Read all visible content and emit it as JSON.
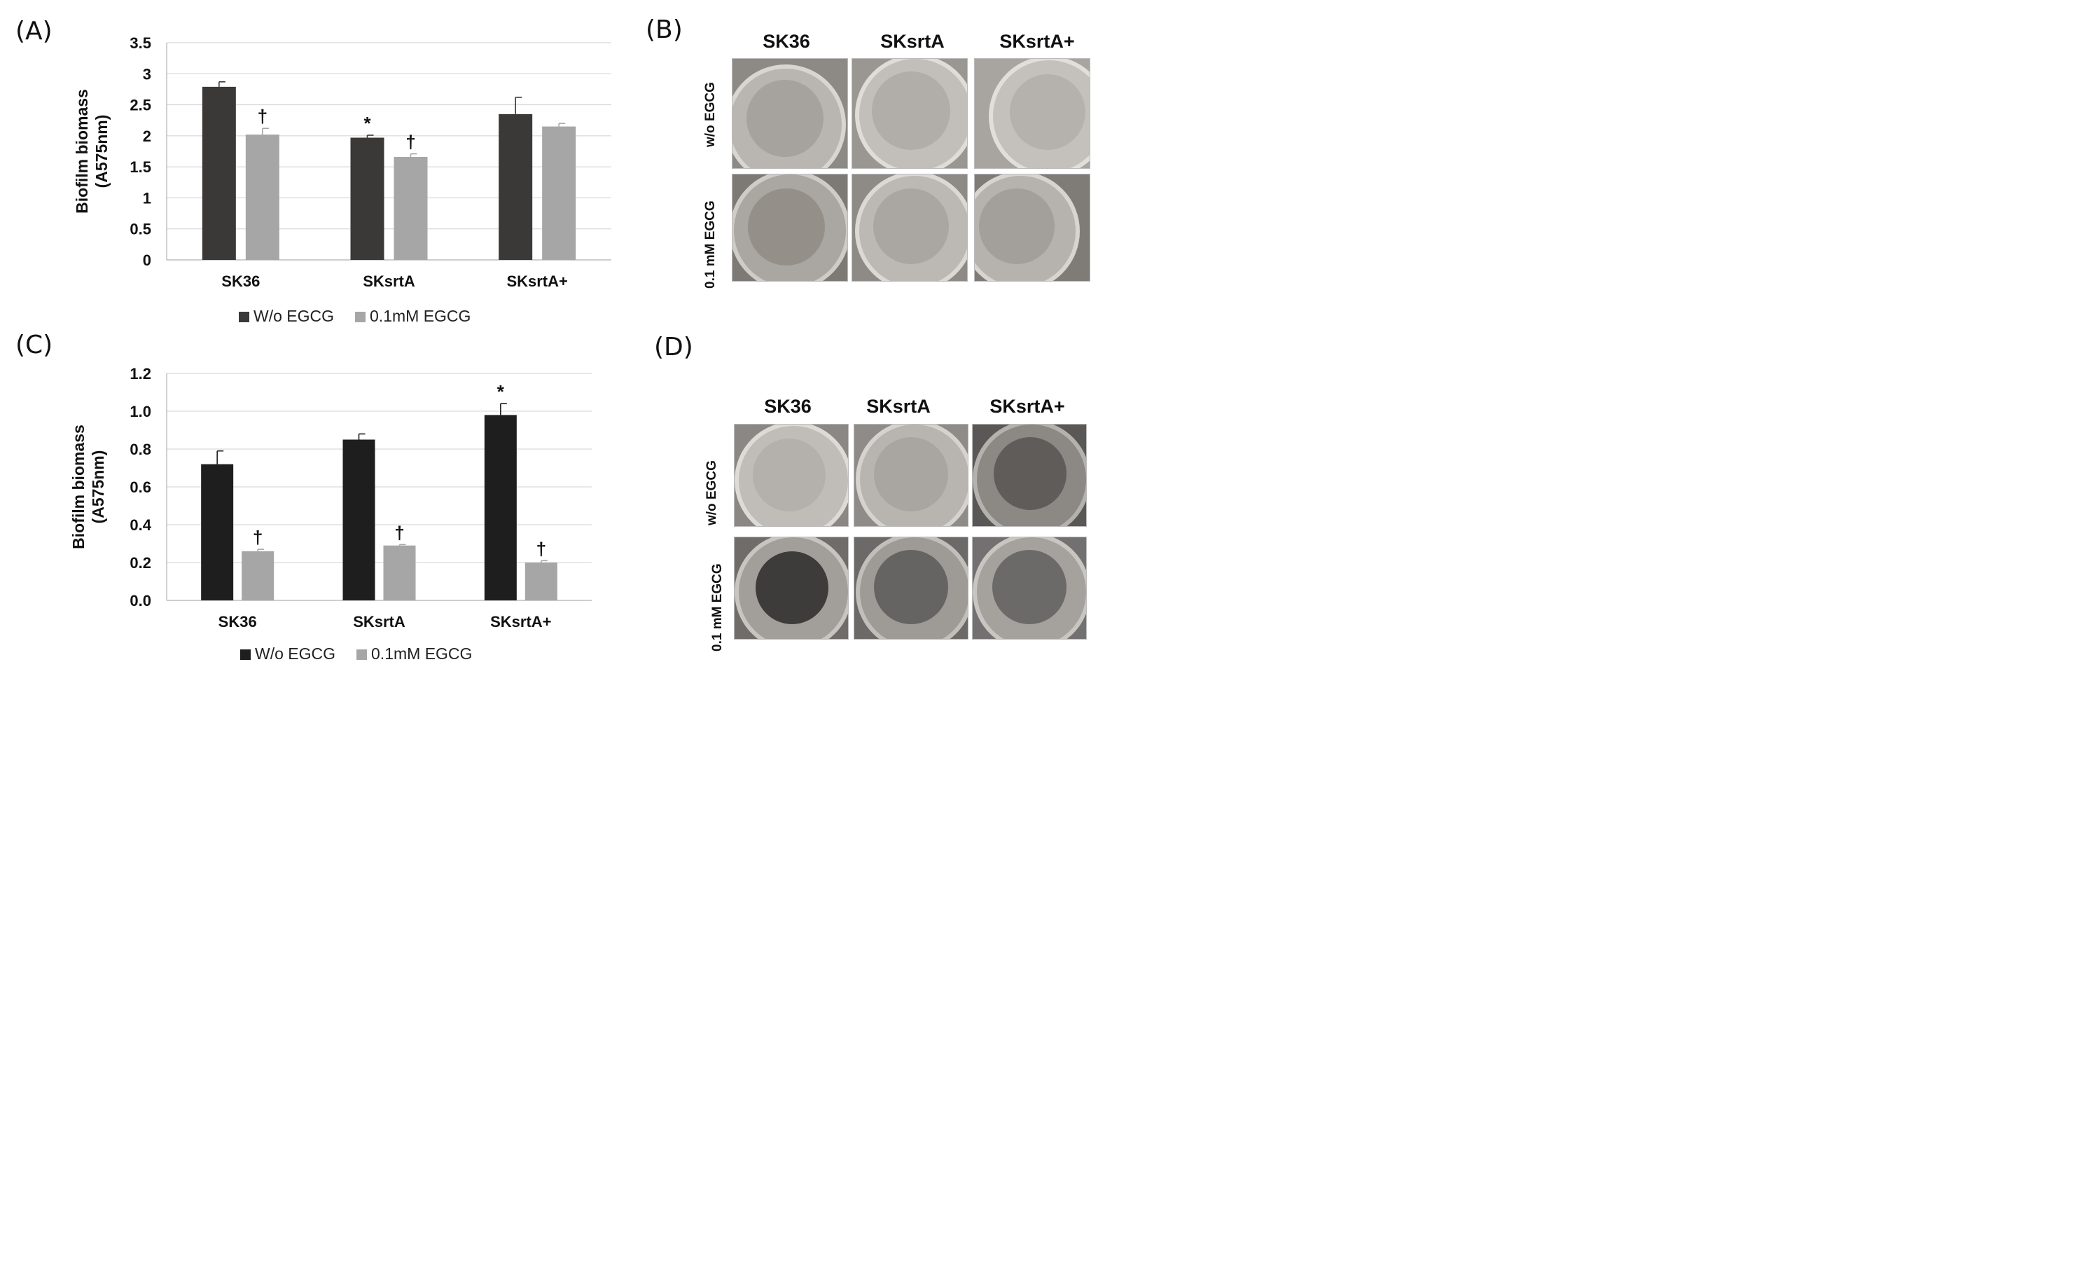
{
  "panels": {
    "a": "(A)",
    "b": "(B)",
    "c": "(C)",
    "d": "(D)"
  },
  "chart_data": [
    {
      "panel": "(A)",
      "type": "bar",
      "categories": [
        "SK36",
        "SKsrtA",
        "SKsrtA+"
      ],
      "series": [
        {
          "name": "W/o EGCG",
          "color": "#3b3838",
          "values": [
            2.79,
            1.97,
            2.35
          ],
          "errors": [
            0.08,
            0.04,
            0.27
          ]
        },
        {
          "name": "0.1mM EGCG",
          "color": "#a6a6a6",
          "values": [
            2.02,
            1.66,
            2.15
          ],
          "errors": [
            0.1,
            0.05,
            0.05
          ]
        }
      ],
      "markers": [
        {
          "series": 1,
          "category": 0,
          "symbol": "†"
        },
        {
          "series": 0,
          "category": 1,
          "symbol": "*"
        },
        {
          "series": 1,
          "category": 1,
          "symbol": "†"
        }
      ],
      "ylabel_line1": "Biofilm biomass",
      "ylabel_line2": "(A575nm)",
      "ylim": [
        0,
        3.5
      ],
      "yticks": [
        "0",
        "0.5",
        "1",
        "1.5",
        "2",
        "2.5",
        "3",
        "3.5"
      ],
      "ytick_values": [
        0,
        0.5,
        1,
        1.5,
        2,
        2.5,
        3,
        3.5
      ],
      "grid": true,
      "legend": "bottom"
    },
    {
      "panel": "(C)",
      "type": "bar",
      "categories": [
        "SK36",
        "SKsrtA",
        "SKsrtA+"
      ],
      "series": [
        {
          "name": "W/o EGCG",
          "color": "#1e1e1e",
          "values": [
            0.72,
            0.85,
            0.98
          ],
          "errors": [
            0.07,
            0.03,
            0.06
          ]
        },
        {
          "name": "0.1mM EGCG",
          "color": "#a6a6a6",
          "values": [
            0.26,
            0.29,
            0.2
          ],
          "errors": [
            0.01,
            0.005,
            0.01
          ]
        }
      ],
      "markers": [
        {
          "series": 1,
          "category": 0,
          "symbol": "†"
        },
        {
          "series": 1,
          "category": 1,
          "symbol": "†"
        },
        {
          "series": 0,
          "category": 2,
          "symbol": "*"
        },
        {
          "series": 1,
          "category": 2,
          "symbol": "†"
        }
      ],
      "ylabel_line1": "Biofilm biomass",
      "ylabel_line2": "(A575nm)",
      "ylim": [
        0,
        1.2
      ],
      "yticks": [
        "0.0",
        "0.2",
        "0.4",
        "0.6",
        "0.8",
        "1.0",
        "1.2"
      ],
      "ytick_values": [
        0,
        0.2,
        0.4,
        0.6,
        0.8,
        1.0,
        1.2
      ],
      "grid": true,
      "legend": "bottom"
    }
  ],
  "photos_b": {
    "columns": [
      "SK36",
      "SKsrtA",
      "SKsrtA+"
    ],
    "rows": [
      "w/o EGCG",
      "0.1 mM EGCG"
    ]
  },
  "photos_d": {
    "columns": [
      "SK36",
      "SKsrtA",
      "SKsrtA+"
    ],
    "rows": [
      "w/o EGCG",
      "0.1 mM EGCG"
    ]
  }
}
